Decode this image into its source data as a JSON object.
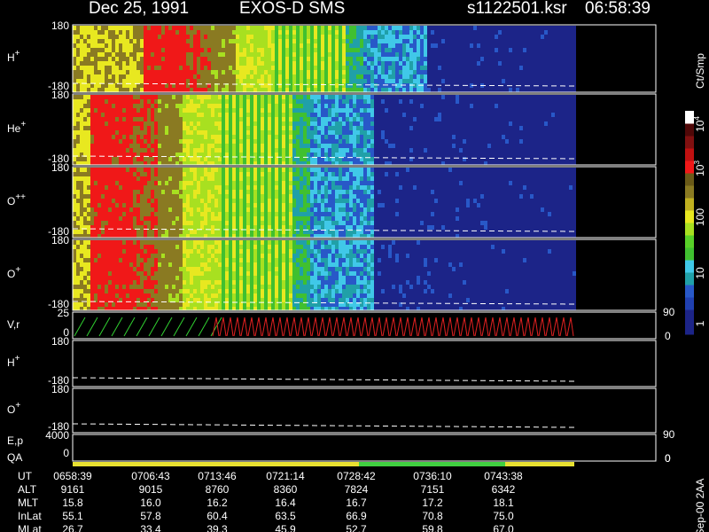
{
  "header": {
    "date": "Dec 25, 1991",
    "instrument": "EXOS-D SMS",
    "file": "s1122501.ksr",
    "time": "06:58:39"
  },
  "panels": [
    {
      "label": "H",
      "sup": "+",
      "top": "180",
      "bottom": "-180"
    },
    {
      "label": "He",
      "sup": "+",
      "top": "180",
      "bottom": "-180"
    },
    {
      "label": "O",
      "sup": "++",
      "top": "180",
      "bottom": "-180"
    },
    {
      "label": "O",
      "sup": "+",
      "top": "180",
      "bottom": "-180"
    },
    {
      "label": "V,r",
      "top": "25",
      "bottom": "0",
      "right_top": "90",
      "right_bottom": "0"
    },
    {
      "label": "H",
      "sup": "+",
      "top": "180",
      "bottom": "-180"
    },
    {
      "label": "O",
      "sup": "+",
      "top": "180",
      "bottom": "-180"
    },
    {
      "label": "E,p",
      "top": "4000",
      "bottom": "0",
      "right_top": "90",
      "right_bottom": "0"
    }
  ],
  "qa_label": "QA",
  "colorbar": {
    "unit": "Ct/Smp",
    "labels": [
      {
        "text": "10",
        "sup": "4"
      },
      {
        "text": "10",
        "sup": "3"
      },
      {
        "text": "100"
      },
      {
        "text": "10"
      },
      {
        "text": "1"
      }
    ]
  },
  "orbit": {
    "rows": [
      {
        "name": "UT",
        "values": [
          "0658:39",
          "0706:43",
          "0713:46",
          "0721:14",
          "0728:42",
          "0736:10",
          "0743:38"
        ]
      },
      {
        "name": "ALT",
        "values": [
          "9161",
          "9015",
          "8760",
          "8360",
          "7824",
          "7151",
          "6342"
        ]
      },
      {
        "name": "MLT",
        "values": [
          "15.8",
          "16.0",
          "16.2",
          "16.4",
          "16.7",
          "17.2",
          "18.1"
        ]
      },
      {
        "name": "InLat",
        "values": [
          "55.1",
          "57.8",
          "60.4",
          "63.5",
          "66.9",
          "70.8",
          "75.0"
        ]
      },
      {
        "name": "MLat",
        "values": [
          "26.7",
          "33.4",
          "39.3",
          "45.9",
          "52.7",
          "59.8",
          "67.0"
        ]
      }
    ]
  },
  "footer": "Sep-00 2AA"
}
